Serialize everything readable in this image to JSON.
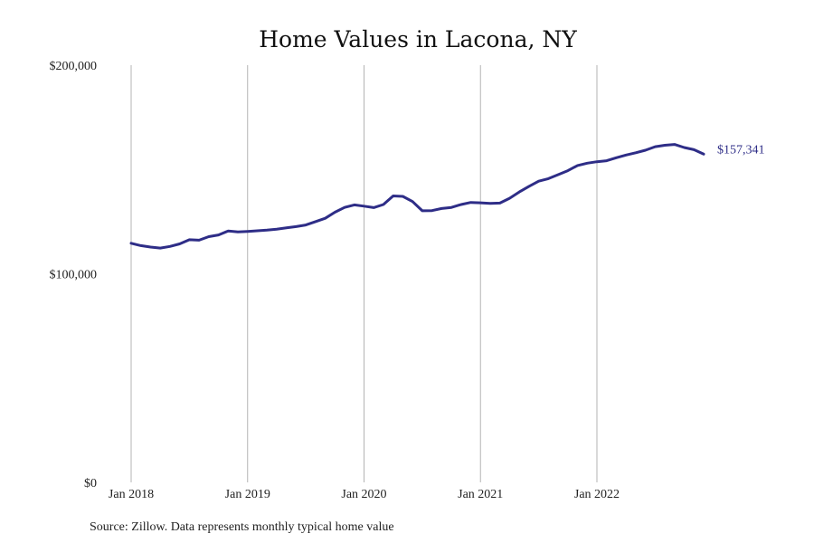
{
  "chart_data": {
    "type": "line",
    "title": "Home Values in Lacona, NY",
    "source": "Source: Zillow. Data represents monthly typical home value",
    "xlabel": "",
    "ylabel": "",
    "ylim": [
      0,
      200000
    ],
    "y_ticks": [
      0,
      100000,
      200000
    ],
    "y_tick_labels": [
      "$0",
      "$100,000",
      "$200,000"
    ],
    "x_ticks": [
      "2018-01",
      "2019-01",
      "2020-01",
      "2021-01",
      "2022-01"
    ],
    "x_tick_labels": [
      "Jan 2018",
      "Jan 2019",
      "Jan 2020",
      "Jan 2021",
      "Jan 2022"
    ],
    "grid": "vertical",
    "line_color": "#2e2d87",
    "end_label": "$157,341",
    "series": [
      {
        "x": [
          "2018-01",
          "2018-02",
          "2018-03",
          "2018-04",
          "2018-05",
          "2018-06",
          "2018-07",
          "2018-08",
          "2018-09",
          "2018-10",
          "2018-11",
          "2018-12",
          "2019-01",
          "2019-02",
          "2019-03",
          "2019-04",
          "2019-05",
          "2019-06",
          "2019-07",
          "2019-08",
          "2019-09",
          "2019-10",
          "2019-11",
          "2019-12",
          "2020-01",
          "2020-02",
          "2020-03",
          "2020-04",
          "2020-05",
          "2020-06",
          "2020-07",
          "2020-08",
          "2020-09",
          "2020-10",
          "2020-11",
          "2020-12",
          "2021-01",
          "2021-02",
          "2021-03",
          "2021-04",
          "2021-05",
          "2021-06",
          "2021-07",
          "2021-08",
          "2021-09",
          "2021-10",
          "2021-11",
          "2021-12",
          "2022-01",
          "2022-02",
          "2022-03",
          "2022-04",
          "2022-05",
          "2022-06",
          "2022-07",
          "2022-08",
          "2022-09",
          "2022-10",
          "2022-11",
          "2022-12"
        ],
        "values": [
          114600,
          113500,
          112800,
          112300,
          113100,
          114300,
          116300,
          116100,
          117800,
          118600,
          120500,
          120100,
          120300,
          120600,
          120900,
          121400,
          122000,
          122600,
          123400,
          125000,
          126600,
          129500,
          131800,
          133000,
          132400,
          131700,
          133200,
          137300,
          137100,
          134600,
          130200,
          130300,
          131300,
          131800,
          133200,
          134200,
          134000,
          133700,
          133900,
          136200,
          139200,
          141900,
          144400,
          145600,
          147500,
          149400,
          151900,
          153000,
          153700,
          154200,
          155600,
          156900,
          158000,
          159200,
          160900,
          161600,
          162000,
          160500,
          159500,
          157341
        ]
      }
    ]
  }
}
